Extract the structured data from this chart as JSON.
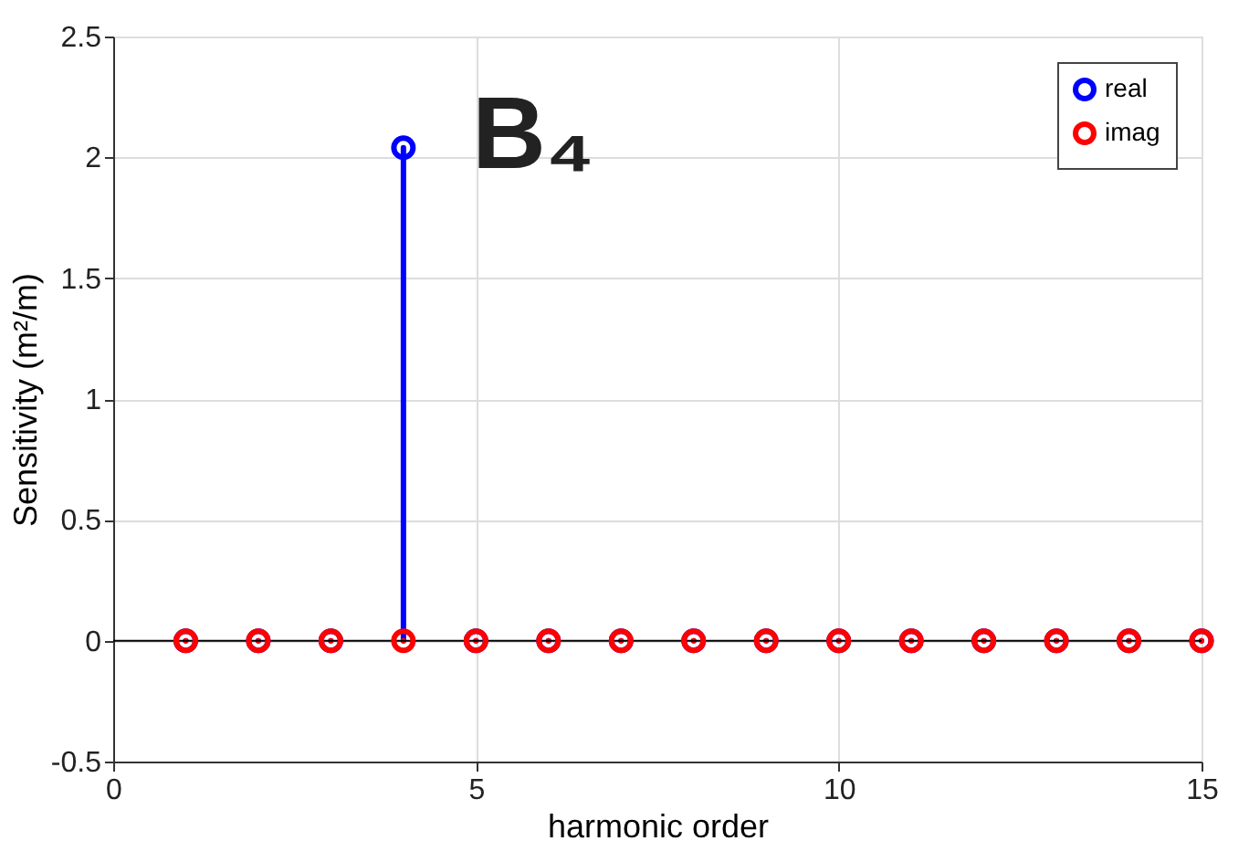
{
  "chart_data": {
    "type": "lollipop",
    "xlabel": "harmonic order",
    "ylabel": "Sensitivity (m²/m)",
    "annotations": [
      "B₄"
    ],
    "x": [
      1,
      2,
      3,
      4,
      5,
      6,
      7,
      8,
      9,
      10,
      11,
      12,
      13,
      14,
      15
    ],
    "series": [
      {
        "name": "real",
        "color": "#0000ff",
        "values": [
          0,
          0,
          0,
          2.04,
          0,
          0,
          0,
          0,
          0,
          0,
          0,
          0,
          0,
          0,
          0
        ]
      },
      {
        "name": "imag",
        "color": "#ff0000",
        "values": [
          0,
          0,
          0,
          0,
          0,
          0,
          0,
          0,
          0,
          0,
          0,
          0,
          0,
          0,
          0
        ]
      }
    ],
    "xlim": [
      0,
      15
    ],
    "xticks": [
      0,
      5,
      10,
      15
    ],
    "ylim": [
      -0.5,
      2.5
    ],
    "yticks": [
      -0.5,
      0,
      0.5,
      1,
      1.5,
      2,
      2.5
    ],
    "ref_lines": [
      {
        "axis": "y",
        "value": 0,
        "color": "#000000"
      }
    ],
    "grid": true,
    "legend": "top right",
    "marker": "circle",
    "line_style": "solid"
  }
}
